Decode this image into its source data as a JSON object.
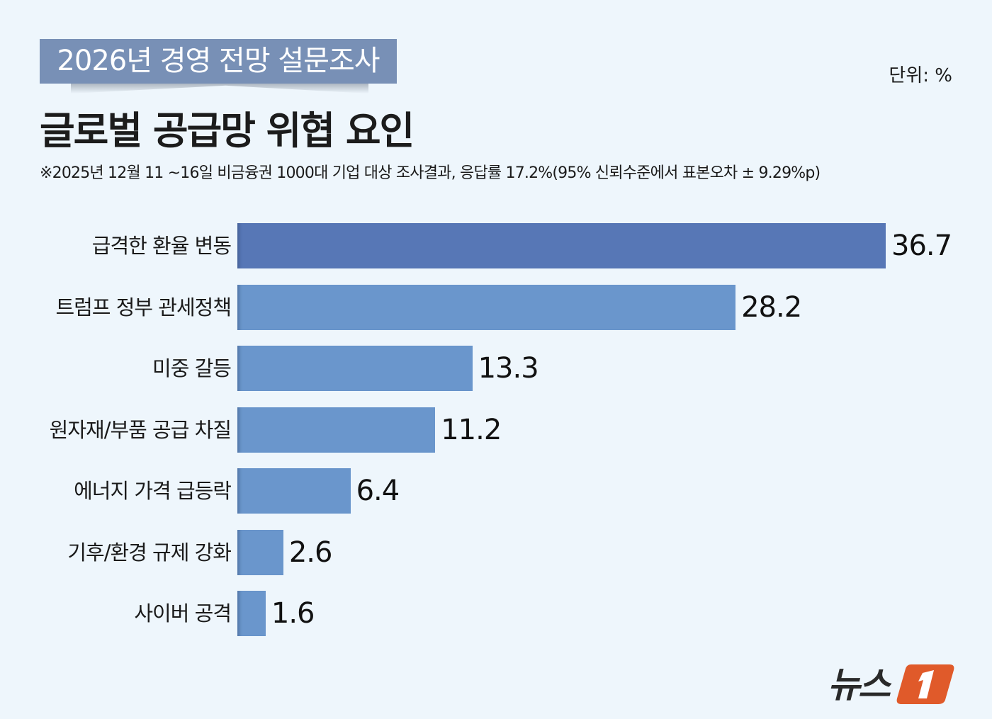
{
  "header": {
    "kicker": "2026년 경영 전망 설문조사",
    "title": "글로벌 공급망 위협 요인",
    "unit": "단위: %",
    "note": "※2025년 12월 11 ~16일 비금융권 1000대 기업 대상 조사결과, 응답률 17.2%(95% 신뢰수준에서 표본오차 ± 9.29%p)"
  },
  "colors": {
    "background": "#eef6fc",
    "kicker_bg": "#7890b6",
    "bar_top": "#5777b6",
    "bar": "#6a96cc",
    "logo_orange": "#e05a2a"
  },
  "chart_data": {
    "type": "bar",
    "orientation": "horizontal",
    "title": "글로벌 공급망 위협 요인",
    "subtitle": "2026년 경영 전망 설문조사",
    "unit": "%",
    "categories": [
      "급격한 환율 변동",
      "트럼프 정부 관세정책",
      "미중 갈등",
      "원자재/부품 공급 차질",
      "에너지 가격 급등락",
      "기후/환경 규제 강화",
      "사이버 공격"
    ],
    "values": [
      36.7,
      28.2,
      13.3,
      11.2,
      6.4,
      2.6,
      1.6
    ],
    "value_labels": [
      "36.7",
      "28.2",
      "13.3",
      "11.2",
      "6.4",
      "2.6",
      "1.6"
    ],
    "xlabel": "",
    "ylabel": "",
    "grid": false,
    "legend": null
  },
  "footer": {
    "logo_text": "뉴스",
    "logo_mark": "1"
  }
}
